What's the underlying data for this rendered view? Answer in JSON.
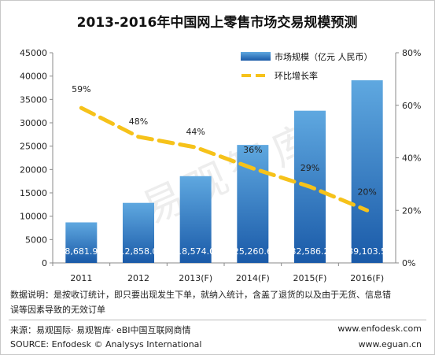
{
  "chart_data": {
    "type": "bar",
    "title": "2013-2016年中国网上零售市场交易规模预测",
    "categories": [
      "2011",
      "2012",
      "2013(F)",
      "2014(F)",
      "2015(F)",
      "2016(F)"
    ],
    "series": [
      {
        "name": "市场规模（亿元 人民币）",
        "type": "bar",
        "axis": "left",
        "values": [
          8681.9,
          12858.0,
          18574.0,
          25260.6,
          32586.2,
          39103.5
        ],
        "labels": [
          "8,681.9",
          "12,858.0",
          "18,574.0",
          "25,260.6",
          "32,586.2",
          "39,103.5"
        ]
      },
      {
        "name": "环比增长率",
        "type": "line",
        "axis": "right",
        "values": [
          59,
          48,
          44,
          36,
          29,
          20
        ],
        "labels": [
          "59%",
          "48%",
          "44%",
          "36%",
          "29%",
          "20%"
        ]
      }
    ],
    "y_left": {
      "min": 0,
      "max": 45000,
      "ticks": [
        "0",
        "5000",
        "10000",
        "15000",
        "20000",
        "25000",
        "30000",
        "35000",
        "40000",
        "45000"
      ]
    },
    "y_right": {
      "min": 0,
      "max": 80,
      "ticks": [
        "0%",
        "20%",
        "40%",
        "60%",
        "80%"
      ]
    },
    "legend_position": "top-right",
    "colors": {
      "bar_top": "#5fa8e0",
      "bar_bottom": "#1a5aa8",
      "line": "#f6c21a"
    },
    "watermark": "易观智库"
  },
  "footer": {
    "note_line1": "数据说明：是按收订统计，即只要出现发生下单，就纳入统计，含盖了退货的以及由于无货、信息错",
    "note_line2": "误等因素导致的无效订单",
    "source_cn": "来源：易观国际· 易观智库· eBI中国互联网商情",
    "source_en": "SOURCE: Enfodesk © Analysys International",
    "url1": "www.enfodesk.com",
    "url2": "www.eguan.cn"
  }
}
